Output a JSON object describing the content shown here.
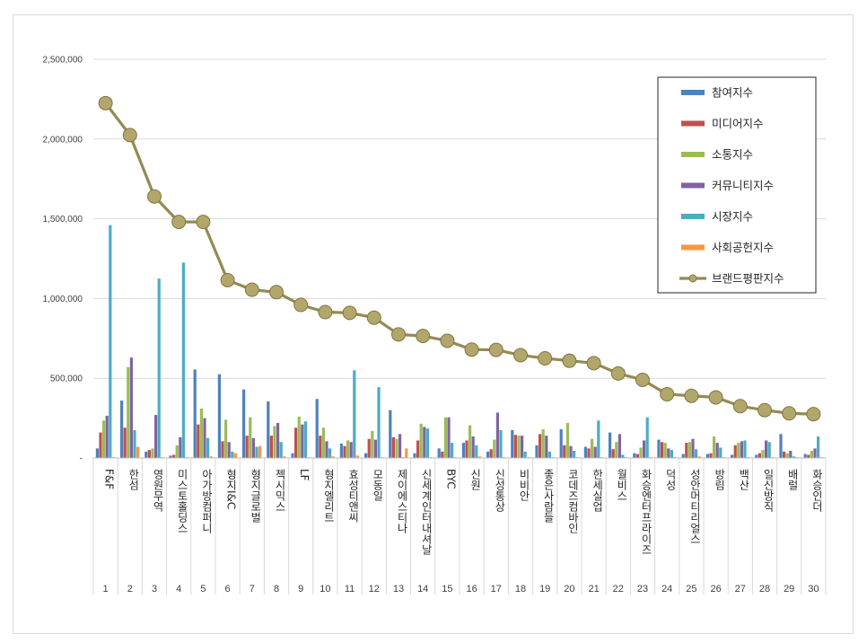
{
  "chart_data": {
    "type": "bar",
    "categories": [
      "F&F",
      "한섬",
      "영원무역",
      "미스토홀딩스",
      "아가방컴퍼니",
      "형지I&C",
      "형지글로벌",
      "젝시믹스",
      "LF",
      "형지엘리트",
      "효성티앤씨",
      "모동일",
      "제이에스티나",
      "신세계인터내셔날",
      "BYC",
      "신원",
      "신성통상",
      "비비안",
      "좋은사람들",
      "코데즈컴바인",
      "한세실업",
      "월비스",
      "화승엔터프라이즈",
      "덕성",
      "성안머티리얼스",
      "방림",
      "백산",
      "일신방직",
      "배럴",
      "화승인더"
    ],
    "ranks": [
      "1",
      "2",
      "3",
      "4",
      "5",
      "6",
      "7",
      "8",
      "9",
      "10",
      "11",
      "12",
      "13",
      "14",
      "15",
      "16",
      "17",
      "18",
      "19",
      "20",
      "21",
      "22",
      "23",
      "24",
      "25",
      "26",
      "27",
      "28",
      "29",
      "30"
    ],
    "series": [
      {
        "name": "참여지수",
        "color": "#4F81BD",
        "values": [
          60000,
          360000,
          40000,
          15000,
          555000,
          525000,
          430000,
          355000,
          30000,
          370000,
          90000,
          30000,
          300000,
          30000,
          60000,
          95000,
          40000,
          175000,
          80000,
          180000,
          70000,
          160000,
          30000,
          115000,
          25000,
          25000,
          20000,
          20000,
          150000,
          25000
        ]
      },
      {
        "name": "미디어지수",
        "color": "#C0504D",
        "values": [
          160000,
          190000,
          50000,
          20000,
          210000,
          105000,
          140000,
          140000,
          190000,
          140000,
          75000,
          120000,
          130000,
          110000,
          40000,
          110000,
          55000,
          145000,
          150000,
          80000,
          60000,
          55000,
          25000,
          100000,
          95000,
          30000,
          80000,
          30000,
          40000,
          20000
        ]
      },
      {
        "name": "소통지수",
        "color": "#9BBB59",
        "values": [
          235000,
          570000,
          60000,
          80000,
          310000,
          240000,
          255000,
          200000,
          260000,
          190000,
          110000,
          170000,
          120000,
          215000,
          255000,
          205000,
          115000,
          140000,
          180000,
          220000,
          120000,
          100000,
          65000,
          95000,
          100000,
          135000,
          95000,
          50000,
          30000,
          45000
        ]
      },
      {
        "name": "커뮤니티지수",
        "color": "#8064A2",
        "values": [
          265000,
          630000,
          270000,
          130000,
          250000,
          100000,
          125000,
          220000,
          210000,
          105000,
          100000,
          115000,
          150000,
          195000,
          255000,
          135000,
          285000,
          140000,
          140000,
          75000,
          70000,
          150000,
          110000,
          60000,
          120000,
          95000,
          105000,
          110000,
          45000,
          60000
        ]
      },
      {
        "name": "시장지수",
        "color": "#4BACC6",
        "values": [
          1460000,
          175000,
          1125000,
          1225000,
          125000,
          40000,
          70000,
          100000,
          230000,
          60000,
          550000,
          445000,
          5000,
          185000,
          95000,
          80000,
          175000,
          40000,
          40000,
          45000,
          235000,
          20000,
          255000,
          50000,
          55000,
          65000,
          110000,
          100000,
          10000,
          135000
        ]
      },
      {
        "name": "사회공헌지수",
        "color": "#F79646",
        "values": [
          5000,
          70000,
          5000,
          5000,
          10000,
          30000,
          75000,
          10000,
          5000,
          10000,
          15000,
          5000,
          60000,
          5000,
          5000,
          10000,
          5000,
          5000,
          5000,
          5000,
          5000,
          5000,
          5000,
          5000,
          10000,
          5000,
          5000,
          5000,
          5000,
          5000
        ]
      }
    ],
    "line": {
      "name": "브랜드평판지수",
      "color": "#948A54",
      "values": [
        2225000,
        2025000,
        1640000,
        1480000,
        1480000,
        1115000,
        1055000,
        1040000,
        960000,
        915000,
        910000,
        880000,
        775000,
        765000,
        735000,
        680000,
        678000,
        645000,
        625000,
        610000,
        595000,
        530000,
        490000,
        400000,
        390000,
        380000,
        325000,
        300000,
        280000,
        275000
      ]
    },
    "ylim": [
      0,
      2500000
    ],
    "yticks": [
      0,
      500000,
      1000000,
      1500000,
      2000000,
      2500000
    ],
    "ytick_labels": [
      "-",
      "500,000",
      "1,000,000",
      "1,500,000",
      "2,000,000",
      "2,500,000"
    ],
    "grid": true,
    "legend": "top-right",
    "title": "",
    "xlabel": "",
    "ylabel": ""
  }
}
